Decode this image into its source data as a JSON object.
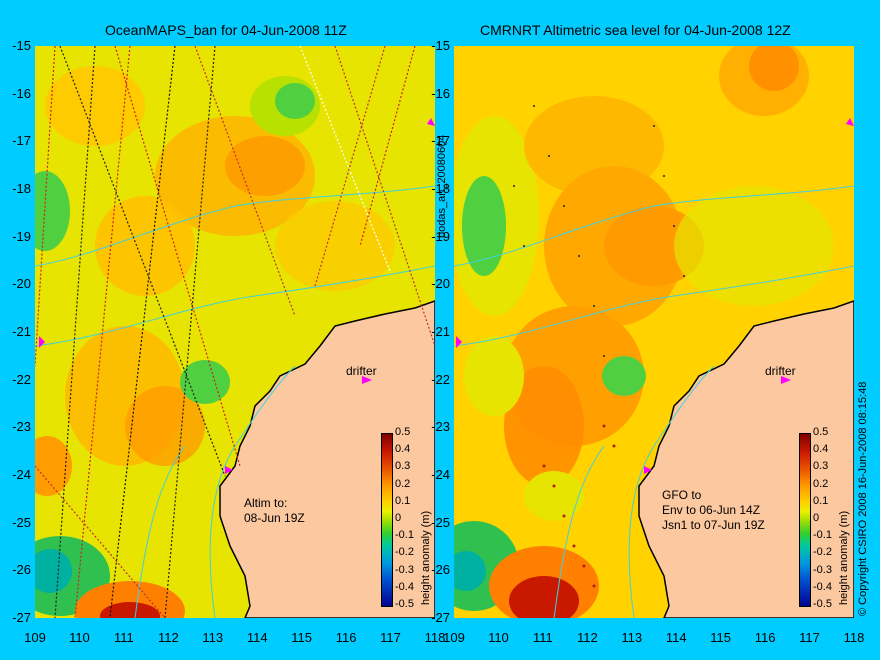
{
  "left_panel": {
    "title": "OceanMAPS_ban for 04-Jun-2008 11Z",
    "drifter_label": "drifter",
    "altim_note": "Altim to:\n08-Jun 19Z",
    "colorbar_label": "height anomaly (m)"
  },
  "right_panel": {
    "title": "CMRNRT Altimetric sea level  for 04-Jun-2008 12Z",
    "drifter_label": "drifter",
    "altim_note": "GFO to\nEnv to 06-Jun 14Z\nJsn1 to 07-Jun 19Z",
    "colorbar_label": "height anomaly (m)"
  },
  "side_label": "bodas_an_20080604",
  "copyright": "© Copyright CSIRO 2008   16-Jun-2008 08:15:48",
  "axes": {
    "y_ticks": [
      "-15",
      "-16",
      "-17",
      "-18",
      "-19",
      "-20",
      "-21",
      "-22",
      "-23",
      "-24",
      "-25",
      "-26",
      "-27"
    ],
    "x_ticks": [
      "109",
      "110",
      "111",
      "112",
      "113",
      "114",
      "115",
      "116",
      "117",
      "118"
    ],
    "lon_range": [
      109,
      118
    ],
    "lat_range": [
      -27,
      -15
    ]
  },
  "colorbar": {
    "ticks": [
      "0.5",
      "0.4",
      "0.3",
      "0.2",
      "0.1",
      "0",
      "-0.1",
      "-0.2",
      "-0.3",
      "-0.4",
      "-0.5"
    ],
    "range": [
      -0.5,
      0.5
    ]
  },
  "colors": {
    "background": "#00ccff",
    "land": "#fcc8a0",
    "coast": "#000000",
    "isobath": "#40d0e0",
    "drifter": "#ff00ff"
  }
}
